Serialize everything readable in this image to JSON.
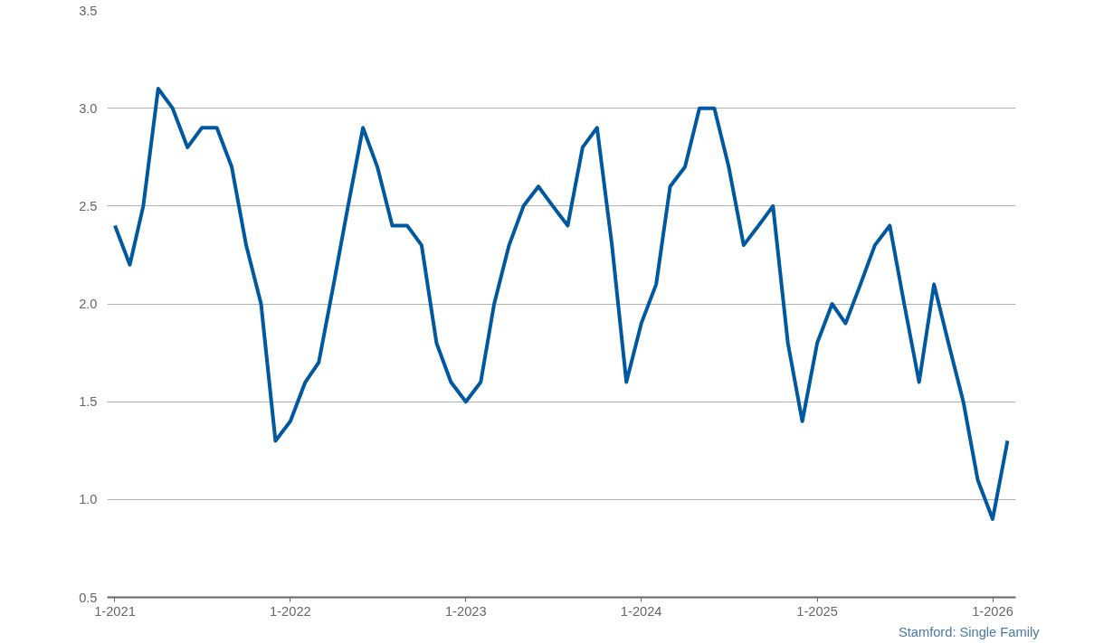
{
  "chart_data": {
    "type": "line",
    "x": [
      "2021-01",
      "2021-02",
      "2021-03",
      "2021-04",
      "2021-05",
      "2021-06",
      "2021-07",
      "2021-08",
      "2021-09",
      "2021-10",
      "2021-11",
      "2021-12",
      "2022-01",
      "2022-02",
      "2022-03",
      "2022-04",
      "2022-05",
      "2022-06",
      "2022-07",
      "2022-08",
      "2022-09",
      "2022-10",
      "2022-11",
      "2022-12",
      "2023-01",
      "2023-02",
      "2023-03",
      "2023-04",
      "2023-05",
      "2023-06",
      "2023-07",
      "2023-08",
      "2023-09",
      "2023-10",
      "2023-11",
      "2023-12",
      "2024-01",
      "2024-02",
      "2024-03",
      "2024-04",
      "2024-05",
      "2024-06",
      "2024-07",
      "2024-08",
      "2024-09",
      "2024-10",
      "2024-11",
      "2024-12",
      "2025-01",
      "2025-02",
      "2025-03",
      "2025-04",
      "2025-05",
      "2025-06",
      "2025-07",
      "2025-08",
      "2025-09",
      "2025-10",
      "2025-11",
      "2025-12",
      "2026-01",
      "2026-02"
    ],
    "series": [
      {
        "color": "#0059a0",
        "values": [
          2.4,
          2.2,
          2.5,
          3.1,
          3.0,
          2.8,
          2.9,
          2.9,
          2.7,
          2.3,
          2.0,
          1.3,
          1.4,
          1.6,
          1.7,
          2.1,
          2.5,
          2.9,
          2.7,
          2.4,
          2.4,
          2.3,
          1.8,
          1.6,
          1.5,
          1.6,
          2.0,
          2.3,
          2.5,
          2.6,
          2.5,
          2.4,
          2.8,
          2.9,
          2.3,
          1.6,
          1.9,
          2.1,
          2.6,
          2.7,
          3.0,
          3.0,
          2.7,
          2.3,
          2.4,
          2.5,
          1.8,
          1.4,
          1.8,
          2.0,
          1.9,
          2.1,
          2.3,
          2.4,
          2.0,
          1.6,
          2.1,
          1.8,
          1.5,
          1.1,
          0.9,
          1.3
        ]
      }
    ],
    "xlim": [
      "2020-12-16",
      "2026-02-18"
    ],
    "xticks": [
      {
        "value": "2021-01",
        "label": "1-2021"
      },
      {
        "value": "2022-01",
        "label": "1-2022"
      },
      {
        "value": "2023-01",
        "label": "1-2023"
      },
      {
        "value": "2024-01",
        "label": "1-2024"
      },
      {
        "value": "2025-01",
        "label": "1-2025"
      },
      {
        "value": "2026-01",
        "label": "1-2026"
      }
    ],
    "ylim": [
      0.5,
      3.5
    ],
    "yticks": [
      {
        "value": 0.5,
        "label": "0.5"
      },
      {
        "value": 1.0,
        "label": "1.0"
      },
      {
        "value": 1.5,
        "label": "1.5"
      },
      {
        "value": 2.0,
        "label": "2.0"
      },
      {
        "value": 2.5,
        "label": "2.5"
      },
      {
        "value": 3.0,
        "label": "3.0"
      },
      {
        "value": 3.5,
        "label": "3.5"
      }
    ],
    "grid": "y",
    "marker": "none",
    "line_style": "solid",
    "annotations": [
      "Stamford: Single Family"
    ]
  }
}
